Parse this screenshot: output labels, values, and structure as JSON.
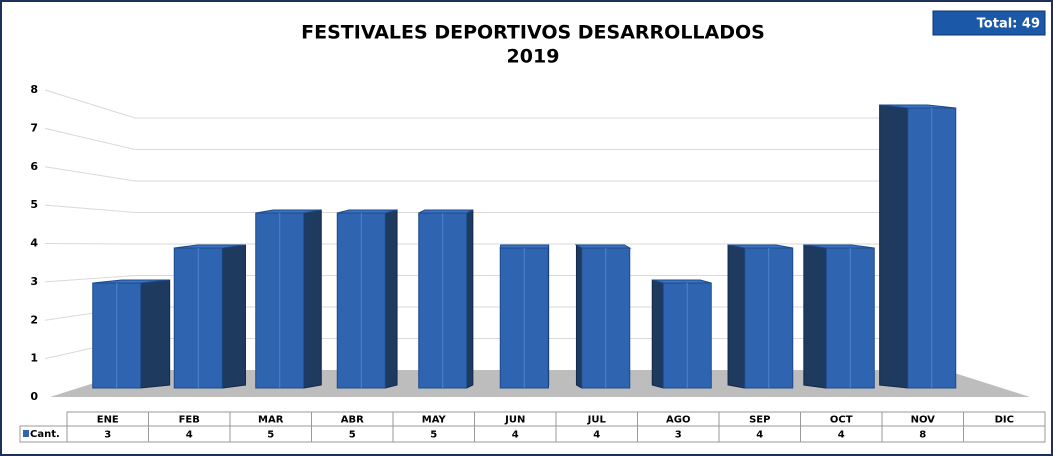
{
  "chart_data": {
    "type": "bar3d",
    "title": [
      "FESTIVALES DEPORTIVOS DESARROLLADOS",
      "2019"
    ],
    "badge": "Total: 49",
    "categories": [
      "ENE",
      "FEB",
      "MAR",
      "ABR",
      "MAY",
      "JUN",
      "JUL",
      "AGO",
      "SEP",
      "OCT",
      "NOV",
      "DIC"
    ],
    "series": [
      {
        "name": "Cant.",
        "color": "#2e64b0",
        "values": [
          3,
          4,
          5,
          5,
          5,
          4,
          4,
          3,
          4,
          4,
          8,
          null
        ]
      }
    ],
    "ylim": [
      0,
      8
    ],
    "yticks": [
      0,
      1,
      2,
      3,
      4,
      5,
      6,
      7,
      8
    ],
    "grid": true
  }
}
